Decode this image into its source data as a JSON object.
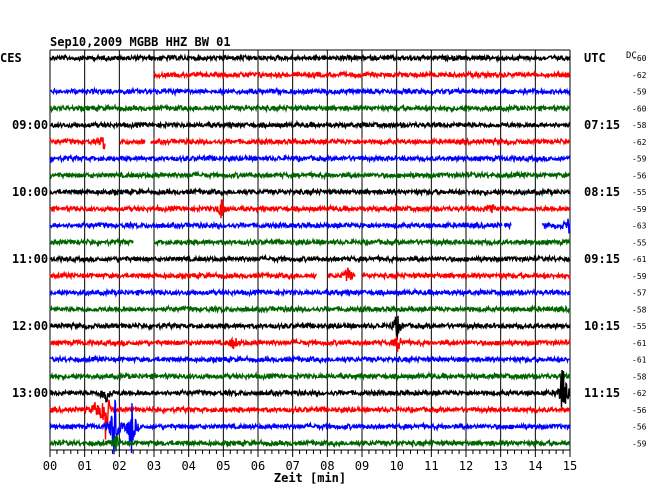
{
  "chart_data": {
    "type": "line",
    "title": "Sep10,2009  MGBB HHZ BW 01",
    "left_header": "CES",
    "right_header": "UTC",
    "dc_header": "DC",
    "xlabel": "Zeit [min]",
    "x_ticks": [
      "00",
      "01",
      "02",
      "03",
      "04",
      "05",
      "06",
      "07",
      "08",
      "09",
      "10",
      "11",
      "12",
      "13",
      "14",
      "15"
    ],
    "xlim": [
      0,
      15
    ],
    "trace_colors": [
      "#000000",
      "#ff0000",
      "#0000ff",
      "#006400"
    ],
    "rows": 24,
    "left_time_labels": [
      {
        "row": 4,
        "label": "09:00"
      },
      {
        "row": 8,
        "label": "10:00"
      },
      {
        "row": 12,
        "label": "11:00"
      },
      {
        "row": 16,
        "label": "12:00"
      },
      {
        "row": 20,
        "label": "13:00"
      }
    ],
    "right_time_labels": [
      {
        "row": 4,
        "label": "07:15"
      },
      {
        "row": 8,
        "label": "08:15"
      },
      {
        "row": 12,
        "label": "09:15"
      },
      {
        "row": 16,
        "label": "10:15"
      },
      {
        "row": 20,
        "label": "11:15"
      }
    ],
    "dc_values": [
      "-60",
      "-62",
      "-59",
      "-60",
      "-58",
      "-62",
      "-59",
      "-56",
      "-55",
      "-59",
      "-63",
      "-55",
      "-61",
      "-59",
      "-57",
      "-58",
      "-55",
      "-61",
      "-61",
      "-58",
      "-62",
      "-56",
      "-56",
      "-59"
    ],
    "gaps": [
      {
        "row": 1,
        "from": 0.0,
        "to": 3.0
      },
      {
        "row": 5,
        "from": 1.6,
        "to": 2.0
      },
      {
        "row": 5,
        "from": 2.75,
        "to": 2.9
      },
      {
        "row": 10,
        "from": 13.05,
        "to": 13.1
      },
      {
        "row": 10,
        "from": 13.3,
        "to": 14.2
      },
      {
        "row": 11,
        "from": 2.4,
        "to": 3.0
      },
      {
        "row": 13,
        "from": 7.7,
        "to": 8.0
      },
      {
        "row": 13,
        "from": 8.8,
        "to": 9.0
      }
    ],
    "events": [
      {
        "row": 5,
        "minute": 1.55,
        "amplitude": 0.4
      },
      {
        "row": 9,
        "minute": 4.95,
        "amplitude": 0.7
      },
      {
        "row": 9,
        "minute": 12.7,
        "amplitude": 0.4
      },
      {
        "row": 10,
        "minute": 14.95,
        "amplitude": 0.5
      },
      {
        "row": 13,
        "minute": 8.6,
        "amplitude": 0.5
      },
      {
        "row": 16,
        "minute": 10.0,
        "amplitude": 0.8
      },
      {
        "row": 17,
        "minute": 10.05,
        "amplitude": 0.6
      },
      {
        "row": 17,
        "minute": 5.3,
        "amplitude": 0.4
      },
      {
        "row": 20,
        "minute": 14.8,
        "amplitude": 2.2
      },
      {
        "row": 20,
        "minute": 1.6,
        "amplitude": 0.9
      },
      {
        "row": 21,
        "minute": 1.6,
        "amplitude": 2.0
      },
      {
        "row": 21,
        "minute": 1.3,
        "amplitude": 0.5
      },
      {
        "row": 22,
        "minute": 1.85,
        "amplitude": 2.2
      },
      {
        "row": 22,
        "minute": 2.35,
        "amplitude": 1.8
      },
      {
        "row": 23,
        "minute": 1.9,
        "amplitude": 0.5
      }
    ],
    "grid": true,
    "legend": "none"
  }
}
